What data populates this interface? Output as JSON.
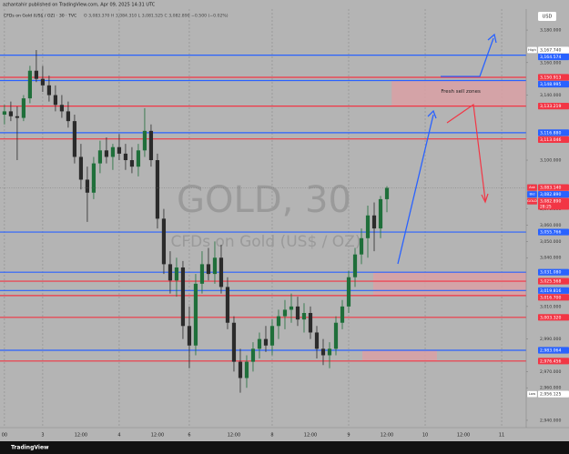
{
  "header": {
    "publisher": "azhantahir published on TradingView.com, Apr 09, 2025 14:31 UTC",
    "symbol": "CFDs on Gold (US$ / OZ) · 30 · TVC",
    "ohlc": "O 3,083.370 H 3,084.310 L 3,081.525 C 3,082.890 −0.500 (−0.02%)",
    "currency": "USD"
  },
  "footer": {
    "brand": "TradingView"
  },
  "chart_data": {
    "type": "candlestick",
    "watermark": {
      "title": "GOLD, 30",
      "subtitle": "CFDs on Gold (US$ / OZ)"
    },
    "up_color": "#1f6f3a",
    "down_color": "#2b2b2b",
    "xlim": [
      10.6,
      175.7
    ],
    "xticks": [
      {
        "value": 12,
        "label": "00"
      },
      {
        "value": 24,
        "label": "3"
      },
      {
        "value": 36,
        "label": "12:00"
      },
      {
        "value": 48,
        "label": "4"
      },
      {
        "value": 60,
        "label": "12:00"
      },
      {
        "value": 70,
        "label": "6"
      },
      {
        "value": 84,
        "label": "12:00"
      },
      {
        "value": 96,
        "label": "8"
      },
      {
        "value": 108,
        "label": "12:00"
      },
      {
        "value": 120,
        "label": "9"
      },
      {
        "value": 132,
        "label": "12:00"
      },
      {
        "value": 144,
        "label": "10"
      },
      {
        "value": 156,
        "label": "12:00"
      },
      {
        "value": 168,
        "label": "11"
      }
    ],
    "ylim": [
      2935.5,
      3192.9
    ],
    "yticks": [
      {
        "value": 3180,
        "label": "3,180.000"
      },
      {
        "value": 3160,
        "label": "3,160.000"
      },
      {
        "value": 3140,
        "label": "3,140.000"
      },
      {
        "value": 3100,
        "label": "3,100.000"
      },
      {
        "value": 3070,
        "label": "3,070.000"
      },
      {
        "value": 3060,
        "label": "3,060.000"
      },
      {
        "value": 3050,
        "label": "3,050.000"
      },
      {
        "value": 3040,
        "label": "3,040.000"
      },
      {
        "value": 3010,
        "label": "3,010.000"
      },
      {
        "value": 2990,
        "label": "2,990.000"
      },
      {
        "value": 2970,
        "label": "2,970.000"
      },
      {
        "value": 2960,
        "label": "2,960.000"
      },
      {
        "value": 2940,
        "label": "2,940.000"
      }
    ],
    "candles": {
      "x": [
        12,
        14,
        16,
        18,
        20,
        22,
        24,
        26,
        28,
        30,
        32,
        34,
        36,
        38,
        40,
        42,
        44,
        46,
        48,
        50,
        52,
        54,
        56,
        58,
        60,
        62,
        64,
        66,
        68,
        70,
        72,
        74,
        76,
        78,
        80,
        82,
        84,
        86,
        88,
        90,
        92,
        94,
        96,
        98,
        100,
        102,
        104,
        106,
        108,
        110,
        112,
        114,
        116,
        118,
        120,
        122,
        124,
        126,
        128,
        130,
        132
      ],
      "open": [
        3128,
        3130,
        3127,
        3126,
        3138,
        3155,
        3150,
        3146,
        3140,
        3134,
        3130,
        3124,
        3102,
        3088,
        3080,
        3098,
        3106,
        3102,
        3108,
        3104,
        3100,
        3096,
        3106,
        3118,
        3100,
        3064,
        3036,
        3026,
        3034,
        2998,
        2986,
        3024,
        3036,
        3030,
        3040,
        3022,
        3000,
        2976,
        2966,
        2976,
        2984,
        2990,
        2986,
        2998,
        3004,
        3008,
        3010,
        3002,
        3006,
        2994,
        2984,
        2980,
        2984,
        3000,
        3010,
        3028,
        3042,
        3052,
        3066,
        3058,
        3076
      ],
      "high": [
        3134,
        3136,
        3133,
        3140,
        3158,
        3167.7,
        3158,
        3152,
        3146,
        3140,
        3136,
        3128,
        3110,
        3096,
        3102,
        3112,
        3114,
        3110,
        3116,
        3110,
        3108,
        3110,
        3132,
        3122,
        3104,
        3070,
        3044,
        3040,
        3038,
        3010,
        3030,
        3044,
        3046,
        3050,
        3048,
        3028,
        3004,
        2984,
        2980,
        2988,
        2994,
        2998,
        3002,
        3008,
        3014,
        3018,
        3016,
        3012,
        3010,
        2998,
        2990,
        2988,
        3004,
        3014,
        3032,
        3046,
        3058,
        3072,
        3074,
        3078,
        3084
      ],
      "low": [
        3122,
        3124,
        3100,
        3124,
        3135,
        3148,
        3142,
        3136,
        3130,
        3126,
        3120,
        3098,
        3082,
        3062,
        3076,
        3092,
        3098,
        3094,
        3100,
        3094,
        3092,
        3090,
        3102,
        3096,
        3058,
        3030,
        3018,
        3016,
        2990,
        2972,
        2980,
        3018,
        3026,
        3024,
        3018,
        2996,
        2970,
        2957,
        2960,
        2970,
        2978,
        2982,
        2980,
        2990,
        2996,
        3000,
        2998,
        2994,
        2990,
        2978,
        2974,
        2972,
        2980,
        2996,
        3006,
        3022,
        3036,
        3040,
        3044,
        3052,
        3068
      ],
      "close": [
        3130,
        3127,
        3126,
        3138,
        3155,
        3150,
        3146,
        3140,
        3134,
        3130,
        3124,
        3102,
        3088,
        3080,
        3098,
        3106,
        3102,
        3108,
        3104,
        3100,
        3096,
        3106,
        3118,
        3100,
        3064,
        3036,
        3026,
        3034,
        2998,
        2986,
        3024,
        3036,
        3030,
        3040,
        3022,
        3000,
        2976,
        2966,
        2976,
        2984,
        2990,
        2986,
        2998,
        3004,
        3008,
        3010,
        3002,
        3006,
        2994,
        2984,
        2980,
        2984,
        3000,
        3010,
        3028,
        3042,
        3052,
        3066,
        3058,
        3076,
        3083
      ]
    },
    "levels": [
      {
        "value": 3164.574,
        "label": "3,164.574",
        "color": "#2962ff"
      },
      {
        "value": 3150.913,
        "label": "3,150.913",
        "color": "#f23645"
      },
      {
        "value": 3148.995,
        "label": "3,148.995",
        "color": "#2962ff"
      },
      {
        "value": 3133.219,
        "label": "3,133.219",
        "color": "#f23645"
      },
      {
        "value": 3116.88,
        "label": "3,116.880",
        "color": "#2962ff"
      },
      {
        "value": 3113.046,
        "label": "3,113.046",
        "color": "#f23645"
      },
      {
        "value": 3055.766,
        "label": "3,055.766",
        "color": "#2962ff"
      },
      {
        "value": 3031.08,
        "label": "3,031.080",
        "color": "#2962ff"
      },
      {
        "value": 3025.568,
        "label": "3,025.568",
        "color": "#f23645"
      },
      {
        "value": 3019.816,
        "label": "3,019.816",
        "color": "#2962ff"
      },
      {
        "value": 3016.7,
        "label": "3,016.700",
        "color": "#f23645"
      },
      {
        "value": 3003.32,
        "label": "3,003.320",
        "color": "#f23645"
      },
      {
        "value": 2983.064,
        "label": "2,983.064",
        "color": "#2962ff"
      },
      {
        "value": 2976.456,
        "label": "2,976.456",
        "color": "#f23645"
      }
    ],
    "zones": [
      {
        "label": "Fresh sell zones",
        "x": [
          133.5,
          175.7
        ],
        "range": [
          3133.219,
          3148.995
        ],
        "color": "#d9a0a5"
      },
      {
        "x": [
          127.7,
          175.7
        ],
        "range": [
          3016.7,
          3031.08
        ],
        "color": "#d9a0a5"
      },
      {
        "x": [
          124.3,
          147.7
        ],
        "range": [
          2976.456,
          2983.064
        ],
        "color": "#d9a0a5"
      }
    ],
    "tags": [
      {
        "tag": "High",
        "value": 3167.74,
        "label": "3,167.740",
        "color": "#ffffff"
      },
      {
        "tag": "Ask",
        "value": 3083.14,
        "label": "3,083.140",
        "color": "#f23645"
      },
      {
        "tag": "Bid",
        "value": 3082.89,
        "label": "3,082.890",
        "color": "#2962ff"
      },
      {
        "tag": "GOLD",
        "value": 3082.89,
        "label": "3,082.890",
        "countdown": "28:25",
        "color": "#f23645"
      },
      {
        "tag": "Low",
        "value": 2956.125,
        "label": "2,956.125",
        "color": "#ffffff"
      }
    ]
  }
}
